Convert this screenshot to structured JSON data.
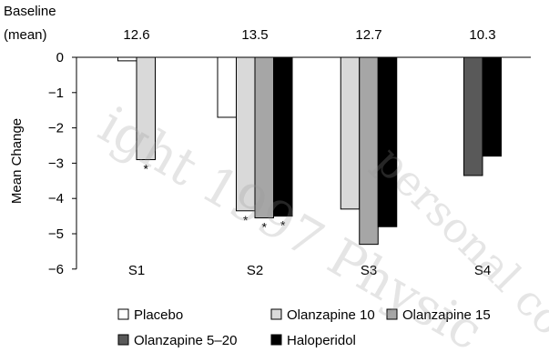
{
  "chart_data": {
    "type": "bar",
    "title": "",
    "xlabel": "",
    "ylabel": "Mean Change",
    "ylim": [
      -6,
      0
    ],
    "yticks": [
      0,
      -1,
      -2,
      -3,
      -4,
      -5,
      -6
    ],
    "ytick_labels": [
      "0",
      "−1",
      "−2",
      "−3",
      "−4",
      "−5",
      "−6"
    ],
    "grid": false,
    "legend_position": "bottom",
    "baseline_header": [
      "Baseline",
      "(mean)"
    ],
    "categories": [
      "S1",
      "S2",
      "S3",
      "S4"
    ],
    "baseline_values": [
      "12.6",
      "13.5",
      "12.7",
      "10.3"
    ],
    "series": [
      {
        "name": "Placebo",
        "color": "#ffffff",
        "values": [
          -0.1,
          -1.7,
          null,
          null
        ]
      },
      {
        "name": "Olanzapine 10",
        "color": "#d9d9d9",
        "values": [
          -2.9,
          -4.35,
          -4.3,
          null
        ]
      },
      {
        "name": "Olanzapine 15",
        "color": "#a6a6a6",
        "values": [
          null,
          -4.55,
          -5.3,
          null
        ]
      },
      {
        "name": "Olanzapine 5–20",
        "color": "#595959",
        "values": [
          null,
          null,
          null,
          -3.35
        ]
      },
      {
        "name": "Haloperidol",
        "color": "#000000",
        "values": [
          null,
          -4.5,
          -4.8,
          -2.8
        ]
      }
    ],
    "significance_marker": "*",
    "significant": [
      {
        "category": "S1",
        "series": "Olanzapine 10"
      },
      {
        "category": "S2",
        "series": "Olanzapine 10"
      },
      {
        "category": "S2",
        "series": "Olanzapine 15"
      },
      {
        "category": "S2",
        "series": "Haloperidol"
      }
    ]
  },
  "watermark": {
    "line1": "ight 1997 Physic",
    "line2": "personal co"
  }
}
